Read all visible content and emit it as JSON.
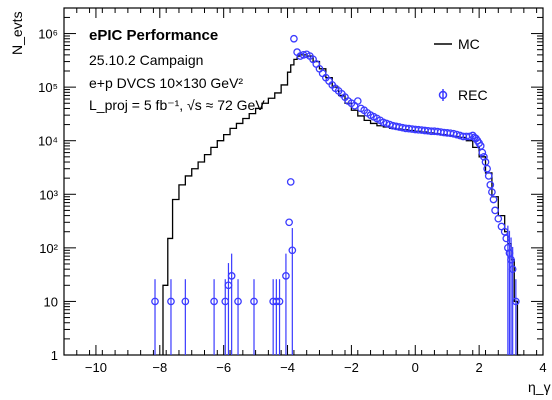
{
  "chart_data": {
    "type": "scatter",
    "xlabel": "η_γ",
    "ylabel": "N_evts",
    "xlim": [
      -11,
      4
    ],
    "ylim": [
      1,
      3000000
    ],
    "yscale": "log",
    "grid": false,
    "legend_position": "top-right",
    "x_ticks": [
      "−10",
      "−8",
      "−6",
      "−4",
      "−2",
      "0",
      "2",
      "4"
    ],
    "y_ticks": [
      "1",
      "10",
      "10²",
      "10³",
      "10⁴",
      "10⁵",
      "10⁶"
    ],
    "annotations": {
      "title": "ePIC Performance",
      "line1": "25.10.2 Campaign",
      "line2": "e+p DVCS 10×130 GeV²",
      "line3": "L_proj = 5 fb⁻¹, √s ≈ 72 GeV"
    },
    "series": [
      {
        "name": "MC",
        "style": "step",
        "color": "#000000",
        "x": [
          -7.9,
          -7.75,
          -7.6,
          -7.4,
          -7.2,
          -7.0,
          -6.8,
          -6.6,
          -6.4,
          -6.2,
          -6.0,
          -5.8,
          -5.6,
          -5.4,
          -5.2,
          -5.0,
          -4.8,
          -4.6,
          -4.4,
          -4.2,
          -4.0,
          -3.9,
          -3.8,
          -3.7,
          -3.6,
          -3.5,
          -3.4,
          -3.2,
          -3.0,
          -2.8,
          -2.6,
          -2.4,
          -2.2,
          -2.0,
          -1.8,
          -1.6,
          -1.4,
          -1.2,
          -1.0,
          -0.8,
          -0.6,
          -0.4,
          -0.2,
          0.0,
          0.2,
          0.4,
          0.6,
          0.8,
          1.0,
          1.2,
          1.4,
          1.6,
          1.8,
          2.0,
          2.2,
          2.4,
          2.6,
          2.8,
          2.9,
          3.0,
          3.1,
          3.2
        ],
        "values": [
          20,
          150,
          800,
          1500,
          2200,
          3000,
          4000,
          5500,
          7500,
          10000,
          13000,
          17000,
          21000,
          26000,
          32000,
          40000,
          50000,
          62000,
          78000,
          110000,
          190000,
          260000,
          330000,
          380000,
          400000,
          400000,
          380000,
          300000,
          220000,
          150000,
          100000,
          70000,
          50000,
          37000,
          29000,
          24000,
          21000,
          19000,
          18000,
          17000,
          16500,
          16000,
          15500,
          15000,
          14500,
          14000,
          13500,
          13000,
          12500,
          12000,
          11500,
          10000,
          7500,
          5000,
          2500,
          900,
          400,
          200,
          120,
          60,
          10,
          1
        ]
      },
      {
        "name": "REC",
        "style": "markers",
        "color": "#3a3aff",
        "x": [
          -8.15,
          -7.65,
          -7.2,
          -6.3,
          -5.95,
          -5.85,
          -5.75,
          -5.55,
          -5.05,
          -4.45,
          -4.35,
          -4.25,
          -4.05,
          -3.95,
          -3.9,
          -3.85,
          -3.8,
          -3.7,
          -3.6,
          -3.5,
          -3.4,
          -3.3,
          -3.2,
          -3.1,
          -3.0,
          -2.9,
          -2.8,
          -2.7,
          -2.6,
          -2.5,
          -2.4,
          -2.3,
          -2.2,
          -2.1,
          -2.0,
          -1.9,
          -1.8,
          -1.7,
          -1.6,
          -1.5,
          -1.4,
          -1.3,
          -1.2,
          -1.1,
          -1.0,
          -0.9,
          -0.8,
          -0.7,
          -0.6,
          -0.5,
          -0.4,
          -0.3,
          -0.2,
          -0.1,
          0.0,
          0.1,
          0.2,
          0.3,
          0.4,
          0.5,
          0.6,
          0.7,
          0.8,
          0.9,
          1.0,
          1.1,
          1.2,
          1.3,
          1.4,
          1.5,
          1.6,
          1.7,
          1.8,
          1.85,
          1.9,
          1.95,
          2.0,
          2.05,
          2.1,
          2.15,
          2.2,
          2.25,
          2.3,
          2.35,
          2.4,
          2.45,
          2.5,
          2.6,
          2.7,
          2.8,
          2.85,
          2.9,
          2.95,
          3.0,
          3.05,
          3.15
        ],
        "values": [
          10,
          10,
          10,
          10,
          10,
          20,
          30,
          10,
          10,
          10,
          10,
          10,
          30,
          300,
          1700,
          90,
          800000,
          450000,
          380000,
          400000,
          410000,
          380000,
          330000,
          270000,
          220000,
          180000,
          150000,
          130000,
          110000,
          95000,
          85000,
          75000,
          65000,
          55000,
          50000,
          45000,
          55000,
          40000,
          37000,
          33000,
          30000,
          28000,
          26000,
          24000,
          22000,
          21000,
          20000,
          19000,
          18500,
          18000,
          17500,
          17000,
          16800,
          16500,
          16200,
          16000,
          15800,
          15500,
          15300,
          15000,
          15000,
          14800,
          14500,
          14200,
          14000,
          13800,
          13500,
          13000,
          12500,
          12000,
          12000,
          12000,
          12500,
          11500,
          11000,
          10000,
          9000,
          8000,
          6000,
          5000,
          4000,
          3000,
          2200,
          1500,
          1100,
          800,
          500,
          350,
          250,
          200,
          150,
          100,
          80,
          60,
          40,
          10
        ]
      }
    ]
  }
}
